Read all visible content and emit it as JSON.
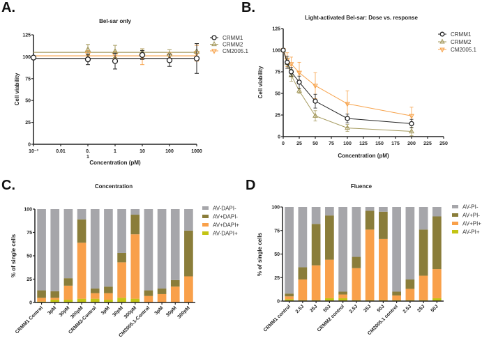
{
  "panels": {
    "a": {
      "letter": "A."
    },
    "b": {
      "letter": "B."
    },
    "c": {
      "letter": "C."
    },
    "d": {
      "letter": "D"
    }
  },
  "colors": {
    "crmm1": "#222222",
    "crmm2": "#a59a5e",
    "cm2005": "#f7a24a",
    "gray": "#a6a6aa",
    "olive": "#8a7d3a",
    "orange": "#f9a04a",
    "lime": "#c3c414"
  },
  "chart_data": [
    {
      "id": "a",
      "type": "line",
      "title": "Bel-sar only",
      "xlabel": "Concentration (pM)",
      "ylabel": "Cell viability",
      "xscale": "log",
      "xlim": [
        0.001,
        1000
      ],
      "ylim": [
        0,
        125
      ],
      "xticks": [
        "10⁻³",
        "0.01",
        "0.",
        "1",
        "10",
        "100",
        "1000"
      ],
      "xtick_sub": "1",
      "yticks": [
        "0",
        "25",
        "50",
        "75",
        "100",
        "125"
      ],
      "legend": "right",
      "x": [
        0.001,
        0.1,
        1,
        10,
        100,
        1000
      ],
      "series": [
        {
          "name": "CRMM1",
          "marker": "circle",
          "values": [
            99,
            97,
            95,
            102,
            96,
            98
          ],
          "err": [
            0,
            6,
            9,
            5,
            7,
            17
          ],
          "fit": 98
        },
        {
          "name": "CRMM2",
          "marker": "triangle-up",
          "values": [
            null,
            108,
            106,
            105,
            103,
            106
          ],
          "err": [
            0,
            6,
            7,
            4,
            5,
            9
          ],
          "fit": 105
        },
        {
          "name": "CM2005.1",
          "marker": "triangle-down",
          "values": [
            null,
            103,
            102,
            100,
            101,
            104
          ],
          "err": [
            0,
            4,
            4,
            9,
            4,
            9
          ],
          "fit": 101
        }
      ]
    },
    {
      "id": "b",
      "type": "line",
      "title": "Light-activated Bel-sar: Dose vs. response",
      "xlabel": "Concentration (pM)",
      "ylabel": "Cell viability",
      "xlim": [
        0,
        250
      ],
      "ylim": [
        0,
        125
      ],
      "xticks": [
        "0",
        "25",
        "50",
        "75",
        "100",
        "125",
        "150",
        "175",
        "200",
        "225",
        "250"
      ],
      "yticks": [
        "0",
        "25",
        "50",
        "75",
        "100",
        "125"
      ],
      "legend": "top-right",
      "x": [
        0,
        6.25,
        12.5,
        25,
        50,
        100,
        200
      ],
      "series": [
        {
          "name": "CRMM1",
          "marker": "circle",
          "values": [
            100,
            86,
            75,
            63,
            41,
            21,
            15
          ],
          "err": [
            0,
            7,
            5,
            7,
            8,
            5,
            5
          ]
        },
        {
          "name": "CRMM2",
          "marker": "triangle-up",
          "values": [
            100,
            85,
            71,
            53,
            24,
            10,
            6
          ],
          "err": [
            0,
            6,
            7,
            3,
            6,
            4,
            5
          ]
        },
        {
          "name": "CM2005.1",
          "marker": "triangle-down",
          "values": [
            100,
            89,
            84,
            74,
            59,
            38,
            24
          ],
          "err": [
            0,
            8,
            8,
            12,
            15,
            15,
            10
          ]
        }
      ]
    },
    {
      "id": "c",
      "type": "bar",
      "stacked": true,
      "title": "Concentration",
      "xlabel": "",
      "ylabel": "% of single cells",
      "ylim": [
        0,
        100
      ],
      "yticks": [
        "0",
        "25",
        "50",
        "75",
        "100"
      ],
      "legend": "right",
      "categories": [
        "CRMM1 Control",
        "3pM",
        "30pM",
        "300pM",
        "CRMM2-Control",
        "3pM",
        "30pM",
        "300pM",
        "CM2005.1-Control",
        "3pM",
        "30pM",
        "300pM"
      ],
      "series": [
        {
          "name": "AV-DAPI+",
          "color": "lime",
          "values": [
            1,
            3,
            3,
            4,
            4,
            3,
            5,
            4,
            0,
            0,
            0,
            0
          ]
        },
        {
          "name": "AV+DAPI+",
          "color": "orange",
          "values": [
            4,
            2,
            15,
            60,
            6,
            7,
            38,
            69,
            7,
            9,
            17,
            28
          ]
        },
        {
          "name": "AV+DAPI-",
          "color": "olive",
          "values": [
            8,
            7,
            8,
            25,
            5,
            7,
            10,
            21,
            6,
            6,
            7,
            49
          ]
        },
        {
          "name": "AV-DAPI-",
          "color": "gray",
          "values": [
            87,
            88,
            74,
            11,
            85,
            83,
            47,
            6,
            87,
            85,
            76,
            23
          ]
        }
      ],
      "legend_order": [
        "AV-DAPI-",
        "AV+DAPI-",
        "AV+DAPI+",
        "AV-DAPI+"
      ]
    },
    {
      "id": "d",
      "type": "bar",
      "stacked": true,
      "title": "Fluence",
      "xlabel": "",
      "ylabel": "% of single cells",
      "ylim": [
        0,
        100
      ],
      "yticks": [
        "0",
        "25",
        "50",
        "75",
        "100"
      ],
      "legend": "right",
      "categories": [
        "CRMM1 control",
        "2.5J",
        "25J",
        "50J",
        "CRMM2 control",
        "2.5J",
        "25J",
        "50J",
        "CM2005.1 control",
        "2.5J",
        "25J",
        "50J"
      ],
      "series": [
        {
          "name": "AV-PI+",
          "color": "lime",
          "values": [
            2,
            1,
            1,
            3,
            3,
            1,
            1,
            1,
            1,
            1,
            1,
            3
          ]
        },
        {
          "name": "AV+PI+",
          "color": "orange",
          "values": [
            3,
            22,
            37,
            41,
            4,
            34,
            75,
            65,
            5,
            12,
            26,
            31
          ]
        },
        {
          "name": "AV+PI-",
          "color": "olive",
          "values": [
            3,
            13,
            44,
            47,
            3,
            12,
            20,
            29,
            4,
            10,
            49,
            56
          ]
        },
        {
          "name": "AV-PI-",
          "color": "gray",
          "values": [
            92,
            64,
            18,
            9,
            90,
            53,
            4,
            5,
            90,
            77,
            24,
            10
          ]
        }
      ],
      "legend_order": [
        "AV-PI-",
        "AV+PI-",
        "AV+PI+",
        "AV-PI+"
      ]
    }
  ]
}
